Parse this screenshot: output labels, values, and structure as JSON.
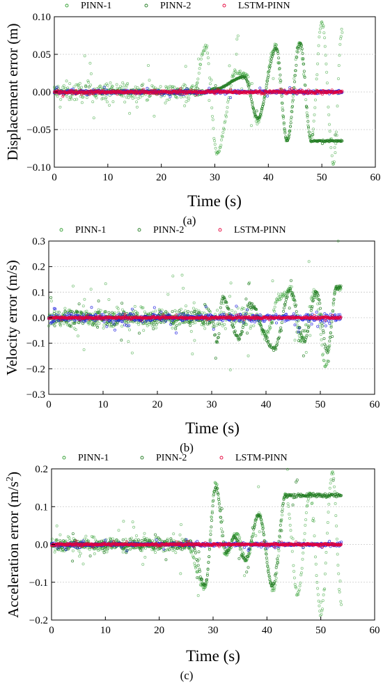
{
  "chart_data": [
    {
      "type": "scatter",
      "panel_label": "(a)",
      "xlabel": "Time (s)",
      "ylabel": "Displacement error (m)",
      "xlim": [
        0,
        60
      ],
      "ylim": [
        -0.1,
        0.1
      ],
      "xticks": [
        "0",
        "10",
        "20",
        "30",
        "40",
        "50",
        "60"
      ],
      "yticks": [
        "-0.10",
        "-0.05",
        "0.00",
        "0.05",
        "0.10"
      ],
      "grid": "horizontal dashed",
      "legend": "top, inside",
      "x_end": 53.8,
      "series": [
        {
          "name": "PINN-1",
          "color": "#2e9e2e",
          "noise_early": 0.018,
          "noise_spike_max": 0.045,
          "oscillation": {
            "start": 26,
            "peaks": [
              [
                28.3,
                0.06
              ],
              [
                30.4,
                -0.08
              ],
              [
                34.0,
                0.028
              ],
              [
                35.8,
                0.022
              ],
              [
                38.0,
                -0.038
              ],
              [
                41.3,
                0.06
              ],
              [
                43.5,
                -0.065
              ],
              [
                45.8,
                0.065
              ],
              [
                48.0,
                -0.065
              ],
              [
                50.0,
                0.093
              ],
              [
                52.2,
                -0.097
              ],
              [
                53.7,
                0.078
              ]
            ]
          }
        },
        {
          "name": "PINN-2",
          "color": "#1f7a1f",
          "noise_early": 0.004,
          "noise_spike_max": 0.01,
          "oscillation": {
            "start": 28,
            "peaks": [
              [
                30,
                0.004
              ],
              [
                35.5,
                0.02
              ],
              [
                38,
                -0.035
              ],
              [
                41.5,
                0.058
              ],
              [
                43.5,
                -0.065
              ],
              [
                46,
                0.065
              ],
              [
                48,
                -0.065
              ]
            ]
          }
        },
        {
          "name": "LSTM-PINN",
          "color": "#e6003a",
          "noise_early": 0.003,
          "noise_spike_max": 0.005,
          "oscillation": null
        },
        {
          "name": "",
          "color": "#1f1fe0",
          "noise_early": 0.003,
          "noise_spike_max": 0.006,
          "oscillation": null
        }
      ]
    },
    {
      "type": "scatter",
      "panel_label": "(b)",
      "xlabel": "Time (s)",
      "ylabel": "Velocity error (m/s)",
      "xlim": [
        0,
        60
      ],
      "ylim": [
        -0.3,
        0.3
      ],
      "xticks": [
        "0",
        "10",
        "20",
        "30",
        "40",
        "50",
        "60"
      ],
      "yticks": [
        "-0.3",
        "-0.2",
        "-0.1",
        "0.0",
        "0.1",
        "0.2",
        "0.3"
      ],
      "grid": "horizontal dashed",
      "legend": "top, inside",
      "x_end": 53.8,
      "series": [
        {
          "name": "PINN-1",
          "color": "#2e9e2e",
          "noise_early": 0.06,
          "noise_spike_max": 0.2,
          "oscillation": {
            "start": 38,
            "peaks": [
              [
                40,
                -0.07
              ],
              [
                42.5,
                0.08
              ],
              [
                44.5,
                0.11
              ],
              [
                46.5,
                -0.09
              ],
              [
                49,
                0.1
              ],
              [
                51,
                -0.19
              ],
              [
                53,
                0.12
              ]
            ]
          }
        },
        {
          "name": "PINN-2",
          "color": "#1f7a1f",
          "noise_early": 0.04,
          "noise_spike_max": 0.1,
          "oscillation": {
            "start": 30,
            "peaks": [
              [
                31,
                -0.1
              ],
              [
                32,
                0.08
              ],
              [
                35,
                -0.08
              ],
              [
                37,
                0.05
              ],
              [
                41.5,
                -0.12
              ],
              [
                44.5,
                0.11
              ],
              [
                47,
                -0.09
              ],
              [
                49.3,
                0.1
              ],
              [
                51.3,
                -0.13
              ],
              [
                53,
                0.12
              ]
            ]
          }
        },
        {
          "name": "LSTM-PINN",
          "color": "#e6003a",
          "noise_early": 0.006,
          "noise_spike_max": 0.015,
          "oscillation": null
        },
        {
          "name": "",
          "color": "#1f1fe0",
          "noise_early": 0.02,
          "noise_spike_max": 0.05,
          "oscillation": null
        }
      ]
    },
    {
      "type": "scatter",
      "panel_label": "(c)",
      "xlabel": "Time (s)",
      "ylabel": "Acceleration error (m/s2)",
      "xlim": [
        0,
        60
      ],
      "ylim": [
        -0.2,
        0.2
      ],
      "xticks": [
        "0",
        "10",
        "20",
        "30",
        "40",
        "50",
        "60"
      ],
      "yticks": [
        "-0.2",
        "-0.1",
        "0.0",
        "0.1",
        "0.2"
      ],
      "grid": "horizontal dashed",
      "legend": "top, inside",
      "x_end": 53.8,
      "series": [
        {
          "name": "PINN-1",
          "color": "#2e9e2e",
          "noise_early": 0.03,
          "noise_spike_max": 0.075,
          "oscillation": {
            "start": 25,
            "peaks": [
              [
                28.5,
                -0.115
              ],
              [
                30.5,
                0.16
              ],
              [
                32.3,
                -0.03
              ],
              [
                34.3,
                0.03
              ],
              [
                36.2,
                -0.04
              ],
              [
                38.5,
                0.08
              ],
              [
                41.2,
                -0.12
              ],
              [
                43.5,
                0.135
              ],
              [
                45.7,
                -0.13
              ],
              [
                48,
                0.135
              ],
              [
                50,
                -0.185
              ],
              [
                52.2,
                0.19
              ],
              [
                53.8,
                -0.16
              ]
            ]
          }
        },
        {
          "name": "PINN-2",
          "color": "#1f7a1f",
          "noise_early": 0.02,
          "noise_spike_max": 0.05,
          "oscillation": {
            "start": 26,
            "peaks": [
              [
                28.5,
                -0.11
              ],
              [
                30.5,
                0.15
              ],
              [
                32.5,
                -0.02
              ],
              [
                34,
                0.02
              ],
              [
                36,
                -0.04
              ],
              [
                38.5,
                0.08
              ],
              [
                41,
                -0.11
              ],
              [
                43.5,
                0.13
              ]
            ]
          }
        },
        {
          "name": "LSTM-PINN",
          "color": "#e6003a",
          "noise_early": 0.004,
          "noise_spike_max": 0.01,
          "oscillation": null
        },
        {
          "name": "",
          "color": "#1f1fe0",
          "noise_early": 0.006,
          "noise_spike_max": 0.014,
          "oscillation": null
        }
      ]
    }
  ]
}
